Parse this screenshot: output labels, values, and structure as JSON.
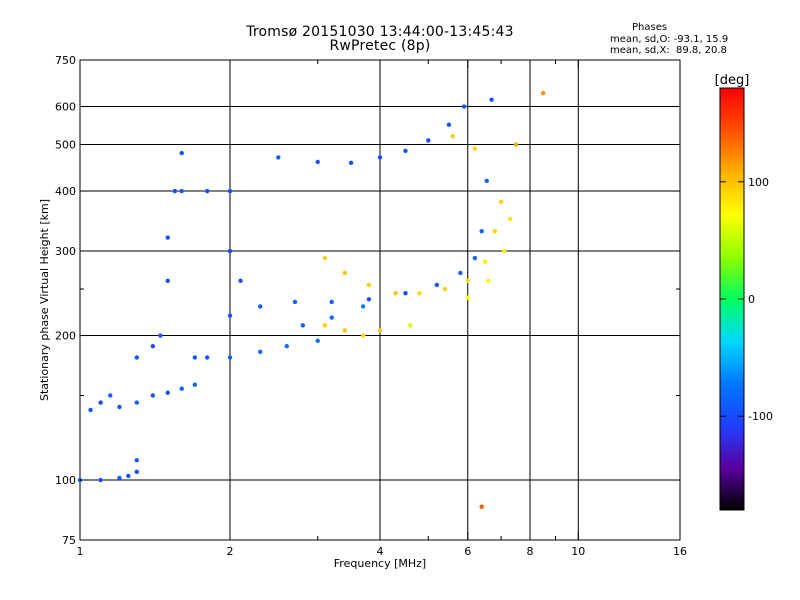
{
  "header": {
    "title_line1": "Tromsø 20151030 13:44:00-13:45:43",
    "title_line2": "RwPretec (8p)",
    "stats_heading": "Phases",
    "stats_o": "mean, sd,O: -93.1, 15.9",
    "stats_x": "mean, sd,X:  89.8, 20.8"
  },
  "colorbar": {
    "unit_label": "[deg]",
    "ticks": [
      100,
      0,
      -100
    ],
    "range": [
      -180,
      180
    ],
    "colors": [
      "#000000",
      "#5a00a0",
      "#2040ff",
      "#0078ff",
      "#00d8ff",
      "#00ff60",
      "#90ff00",
      "#ffff00",
      "#ffb000",
      "#ff5000",
      "#ff0000"
    ]
  },
  "chart_data": {
    "type": "scatter",
    "xlabel": "Frequency [MHz]",
    "ylabel": "Stationary phase Virtual Height [km]",
    "x_scale": "log",
    "y_scale": "log",
    "xlim": [
      1,
      16
    ],
    "ylim": [
      75,
      750
    ],
    "x_ticks": [
      1,
      2,
      4,
      6,
      8,
      10,
      16
    ],
    "x_minor_ticks": [
      3,
      5,
      7,
      9
    ],
    "y_ticks": [
      75,
      100,
      200,
      300,
      400,
      500,
      600,
      750
    ],
    "y_minor_ticks": [
      150,
      250
    ],
    "grid": true,
    "series": [
      {
        "values": [
          [
            1.0,
            100,
            -95
          ],
          [
            1.1,
            100,
            -100
          ],
          [
            1.2,
            101,
            -90
          ],
          [
            1.25,
            102,
            -95
          ],
          [
            1.3,
            104,
            -100
          ],
          [
            1.3,
            110,
            -90
          ],
          [
            1.05,
            140,
            -95
          ],
          [
            1.1,
            145,
            -100
          ],
          [
            1.15,
            150,
            -90
          ],
          [
            1.2,
            142,
            -95
          ],
          [
            1.3,
            145,
            -90
          ],
          [
            1.4,
            150,
            -95
          ],
          [
            1.5,
            152,
            -100
          ],
          [
            1.6,
            155,
            -90
          ],
          [
            1.7,
            158,
            -85
          ],
          [
            1.3,
            180,
            -95
          ],
          [
            1.4,
            190,
            -100
          ],
          [
            1.45,
            200,
            -95
          ],
          [
            1.5,
            260,
            -100
          ],
          [
            1.5,
            320,
            -95
          ],
          [
            1.55,
            400,
            -100
          ],
          [
            1.6,
            480,
            -95
          ],
          [
            1.7,
            180,
            -90
          ],
          [
            1.8,
            180,
            -95
          ],
          [
            2.0,
            180,
            -90
          ],
          [
            2.3,
            185,
            -85
          ],
          [
            2.6,
            190,
            -80
          ],
          [
            3.0,
            195,
            -75
          ],
          [
            1.6,
            400,
            -95
          ],
          [
            1.8,
            400,
            -100
          ],
          [
            2.0,
            400,
            -95
          ],
          [
            2.0,
            300,
            -100
          ],
          [
            2.1,
            260,
            -95
          ],
          [
            2.0,
            220,
            -95
          ],
          [
            2.3,
            230,
            -90
          ],
          [
            2.7,
            235,
            -85
          ],
          [
            3.2,
            235,
            -90
          ],
          [
            3.8,
            238,
            -95
          ],
          [
            4.5,
            245,
            -100
          ],
          [
            5.2,
            255,
            -95
          ],
          [
            5.8,
            270,
            -90
          ],
          [
            6.2,
            290,
            -85
          ],
          [
            6.4,
            330,
            -85
          ],
          [
            6.55,
            420,
            -90
          ],
          [
            6.7,
            620,
            -95
          ],
          [
            2.5,
            470,
            -90
          ],
          [
            3.0,
            460,
            -95
          ],
          [
            3.5,
            458,
            -95
          ],
          [
            4.0,
            470,
            -100
          ],
          [
            4.5,
            485,
            -95
          ],
          [
            5.0,
            510,
            -100
          ],
          [
            5.5,
            550,
            -95
          ],
          [
            5.9,
            600,
            -95
          ],
          [
            2.8,
            210,
            -90
          ],
          [
            3.2,
            218,
            -80
          ],
          [
            3.7,
            230,
            -70
          ]
        ]
      },
      {
        "values": [
          [
            3.1,
            290,
            95
          ],
          [
            3.4,
            270,
            100
          ],
          [
            3.8,
            255,
            95
          ],
          [
            4.3,
            245,
            100
          ],
          [
            4.8,
            245,
            90
          ],
          [
            5.4,
            250,
            95
          ],
          [
            6.0,
            260,
            85
          ],
          [
            6.5,
            285,
            80
          ],
          [
            6.8,
            330,
            90
          ],
          [
            7.0,
            380,
            95
          ],
          [
            3.1,
            210,
            95
          ],
          [
            3.4,
            205,
            100
          ],
          [
            3.7,
            200,
            90
          ],
          [
            4.0,
            205,
            95
          ],
          [
            6.0,
            240,
            70
          ],
          [
            6.6,
            260,
            75
          ],
          [
            7.1,
            300,
            80
          ],
          [
            7.3,
            350,
            85
          ],
          [
            6.2,
            490,
            90
          ],
          [
            5.6,
            520,
            95
          ],
          [
            7.5,
            500,
            110
          ],
          [
            4.6,
            210,
            60
          ],
          [
            8.5,
            640,
            120
          ],
          [
            6.4,
            88,
            140
          ]
        ]
      }
    ]
  }
}
